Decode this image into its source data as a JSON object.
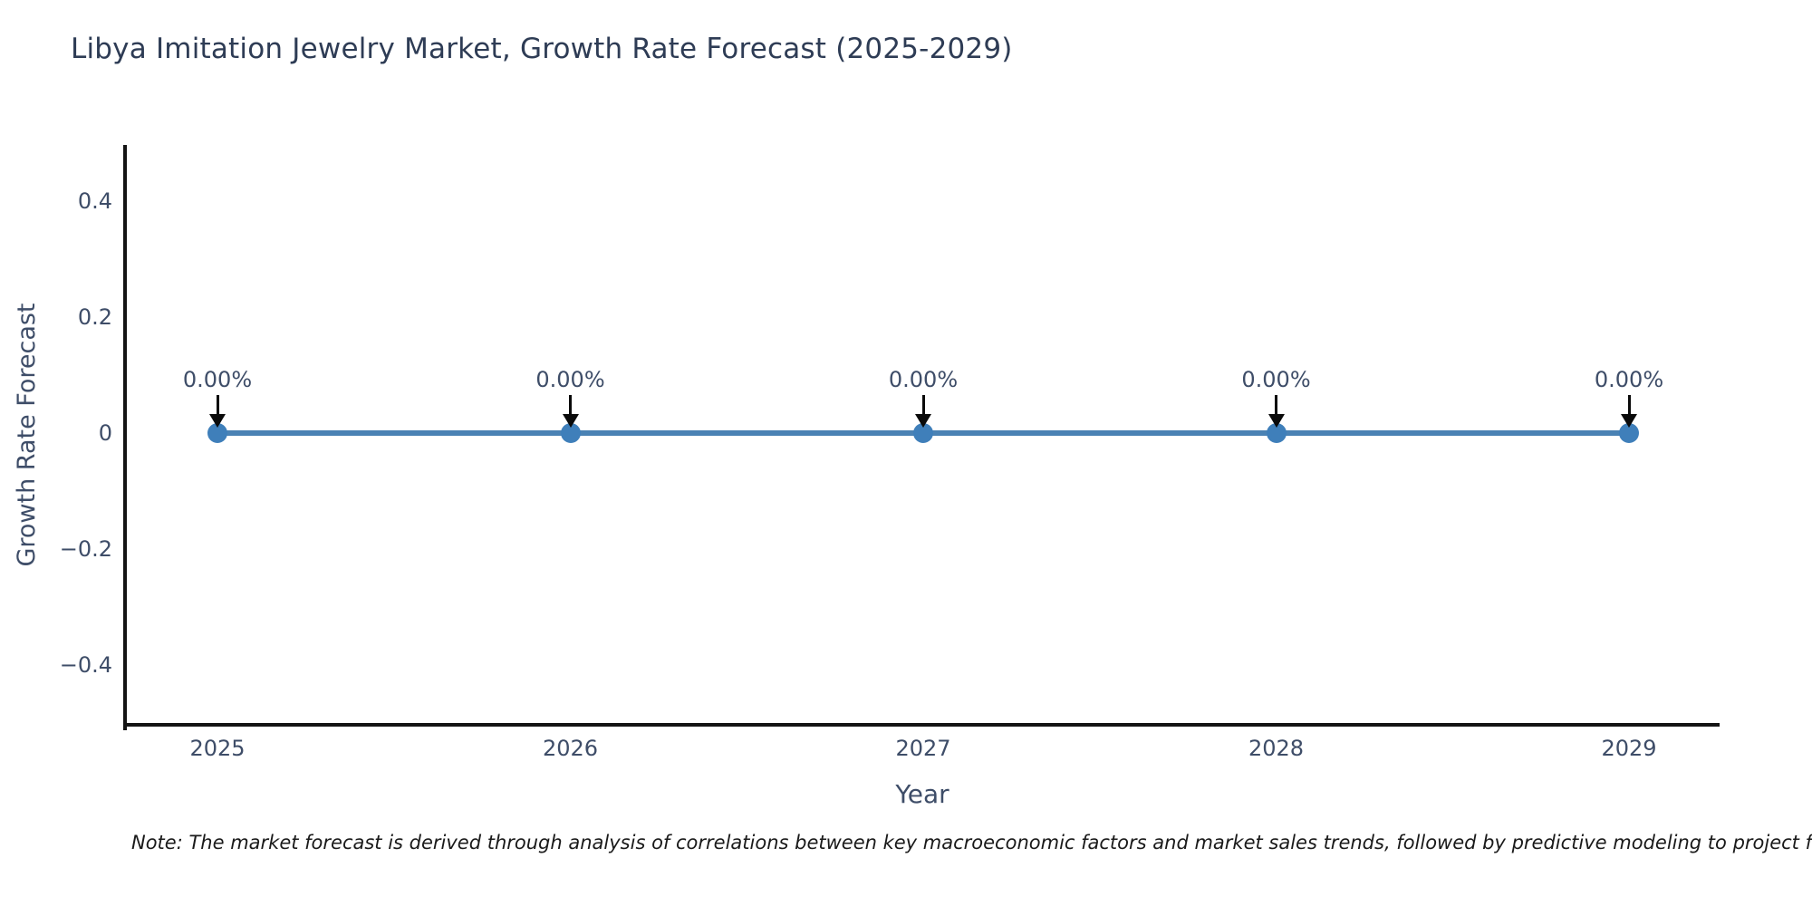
{
  "chart_data": {
    "type": "line",
    "title": "Libya Imitation Jewelry Market, Growth Rate Forecast (2025-2029)",
    "x": [
      2025,
      2026,
      2027,
      2028,
      2029
    ],
    "series": [
      {
        "name": "Growth Rate Forecast",
        "values": [
          0,
          0,
          0,
          0,
          0
        ]
      }
    ],
    "point_labels": [
      "0.00%",
      "0.00%",
      "0.00%",
      "0.00%",
      "0.00%"
    ],
    "xlabel": "Year",
    "ylabel": "Growth Rate Forecast",
    "yticks": [
      0.4,
      0.2,
      0,
      -0.2,
      -0.4
    ],
    "ytick_labels": [
      "0.4",
      "0.2",
      "0",
      "−0.2",
      "−0.4"
    ],
    "ylim": [
      -0.5,
      0.5
    ],
    "grid": false,
    "legend": false,
    "annotation_arrows": "down-to-point"
  },
  "colors": {
    "line": "#4a82b4",
    "marker": "#3f7fba",
    "axis": "#141414",
    "arrow": "#0a0a0a",
    "title_text": "#2e3c55",
    "tick_text": "#3e4d68"
  },
  "note": {
    "text": "Note: The market forecast is derived through analysis of correlations between key macroeconomic factors and market sales trends, followed by predictive modeling to project future sa"
  }
}
